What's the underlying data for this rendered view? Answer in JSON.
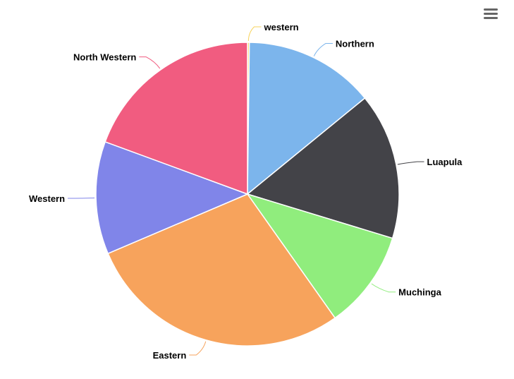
{
  "menu": {
    "icon": "hamburger-menu-icon",
    "color": "#666666"
  },
  "chart_data": {
    "type": "pie",
    "title": "",
    "slices": [
      {
        "label": "western",
        "value": 0.2,
        "color": "#f7d35c"
      },
      {
        "label": "Northern",
        "value": 13.9,
        "color": "#7cb5ec"
      },
      {
        "label": "Luapula",
        "value": 15.6,
        "color": "#434348"
      },
      {
        "label": "Muchinga",
        "value": 10.5,
        "color": "#90ed7d"
      },
      {
        "label": "Eastern",
        "value": 28.4,
        "color": "#f7a35c"
      },
      {
        "label": "Western",
        "value": 12.0,
        "color": "#8085e9"
      },
      {
        "label": "North Western",
        "value": 19.4,
        "color": "#f15c80"
      }
    ]
  }
}
